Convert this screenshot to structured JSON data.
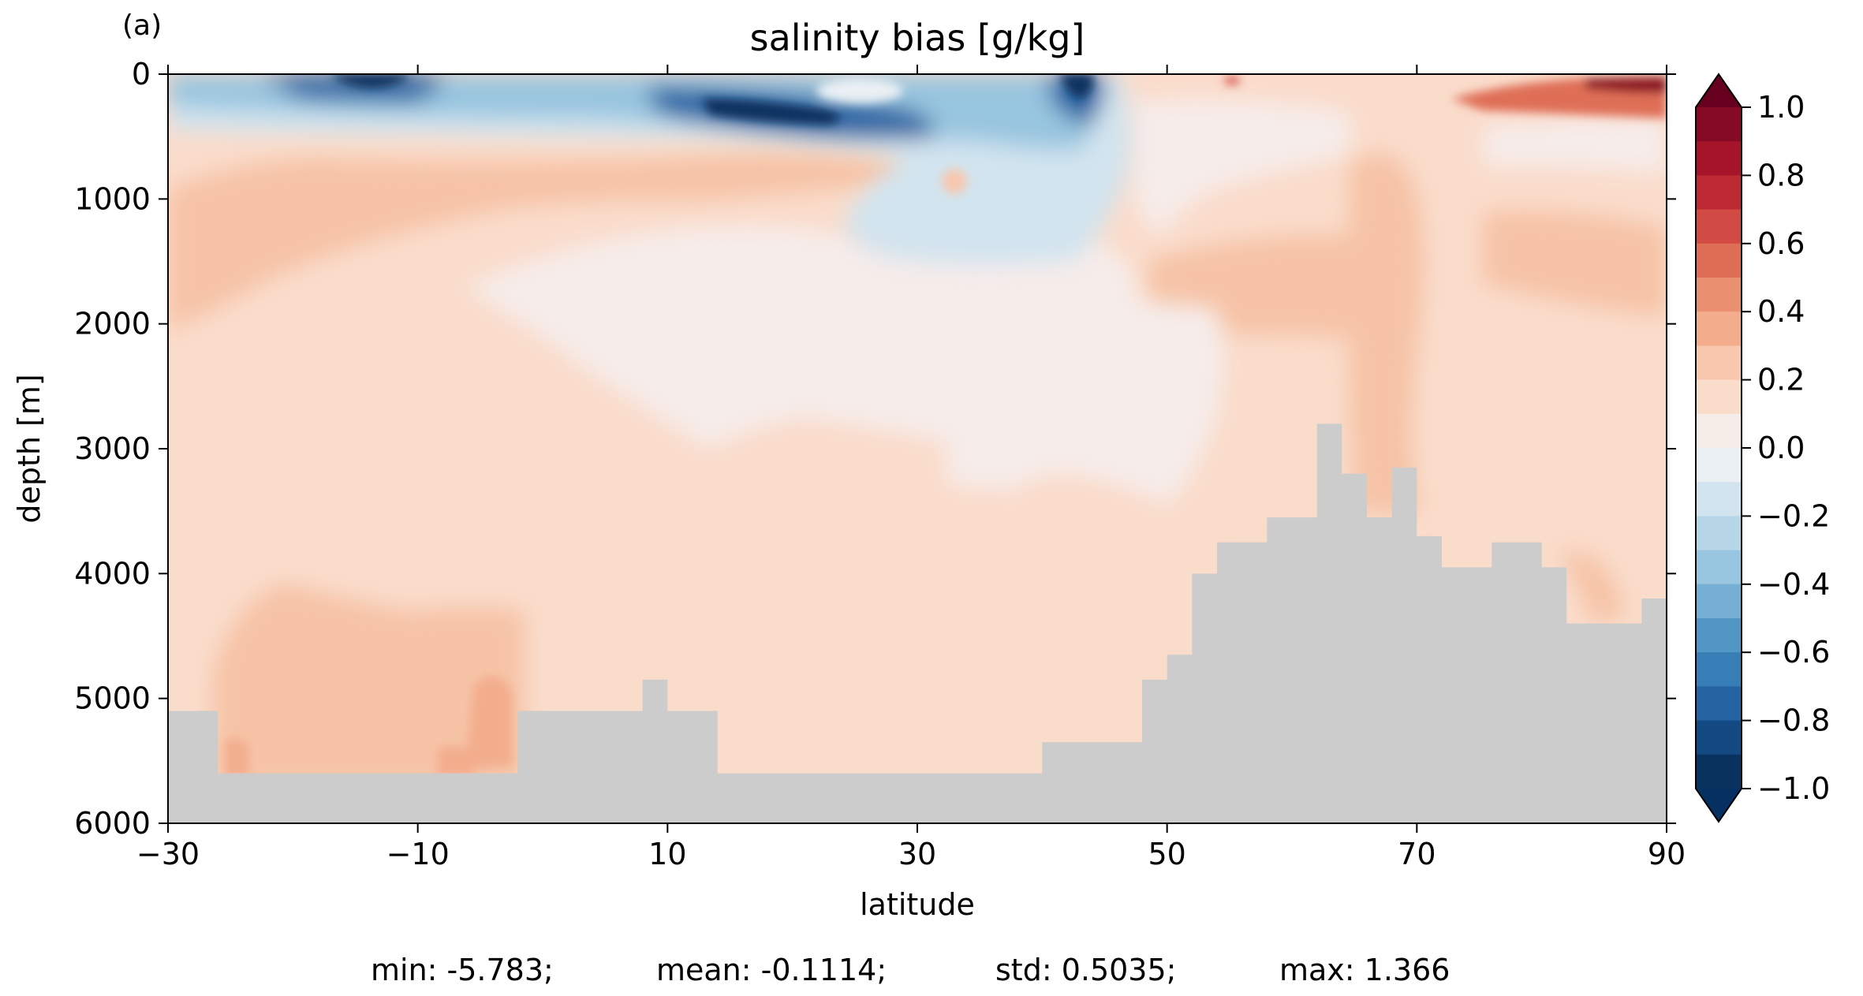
{
  "panel_label": "(a)",
  "chart_data": {
    "type": "heatmap",
    "title": "salinity bias [g/kg]",
    "xlabel": "latitude",
    "ylabel": "depth [m]",
    "xlim": [
      -30,
      90
    ],
    "ylim": [
      6000,
      0
    ],
    "x_ticks": [
      -30,
      -10,
      10,
      30,
      50,
      70,
      90
    ],
    "x_tick_labels": [
      "−30",
      "−10",
      "10",
      "30",
      "50",
      "70",
      "90"
    ],
    "y_ticks": [
      0,
      1000,
      2000,
      3000,
      4000,
      5000,
      6000
    ],
    "y_tick_labels": [
      "0",
      "1000",
      "2000",
      "3000",
      "4000",
      "5000",
      "6000"
    ],
    "colorbar": {
      "min": -1.0,
      "max": 1.0,
      "extend": "both",
      "tick_values": [
        1.0,
        0.8,
        0.6,
        0.4,
        0.2,
        0.0,
        -0.2,
        -0.4,
        -0.6,
        -0.8,
        -1.0
      ],
      "tick_labels": [
        "1.0",
        "0.8",
        "0.6",
        "0.4",
        "0.2",
        "0.0",
        "−0.2",
        "−0.4",
        "−0.6",
        "−0.8",
        "−1.0"
      ],
      "colors_top_to_bottom": [
        "#870a24",
        "#a51429",
        "#be2a33",
        "#d14a43",
        "#df6e56",
        "#ea9070",
        "#f3ad8d",
        "#f8c7ae",
        "#fadccb",
        "#f7ede8",
        "#eaf0f4",
        "#d2e4ef",
        "#b7d6e8",
        "#98c5df",
        "#75afd3",
        "#5296c5",
        "#377eb7",
        "#2563a3",
        "#144a84",
        "#0a325e"
      ],
      "over_color": "#67001f",
      "under_color": "#053061"
    },
    "land_mask_color": "#cccccc",
    "dominant_value_below_1000m": 0.2,
    "surface_min_region": {
      "lat_range": [
        -15,
        30
      ],
      "depth_range": [
        0,
        500
      ],
      "value": -1.0
    },
    "arctic_surface_max_region": {
      "lat_range": [
        75,
        90
      ],
      "depth_range": [
        0,
        200
      ],
      "value": 1.0
    },
    "bathymetry": {
      "lat": [
        -30,
        -26,
        -22,
        -18,
        -12,
        -6,
        -2,
        2,
        6,
        8,
        10,
        14,
        18,
        24,
        30,
        36,
        40,
        44,
        48,
        50,
        52,
        54,
        56,
        58,
        60,
        62,
        64,
        66,
        68,
        70,
        72,
        74,
        76,
        78,
        80,
        82,
        84,
        86,
        88,
        90
      ],
      "depth": [
        5100,
        5600,
        5600,
        5600,
        5600,
        5600,
        5100,
        5100,
        5100,
        4850,
        5100,
        5600,
        5600,
        5600,
        5600,
        5600,
        5350,
        5350,
        4850,
        4650,
        4000,
        3750,
        3750,
        3550,
        3550,
        2800,
        3200,
        3550,
        3150,
        3700,
        3950,
        3950,
        3750,
        3750,
        3950,
        4400,
        4400,
        4400,
        4200,
        4200
      ]
    },
    "stats": {
      "min": "min: -5.783;",
      "mean": "mean: -0.1114;",
      "std": "std: 0.5035;",
      "max": "max: 1.366"
    }
  }
}
